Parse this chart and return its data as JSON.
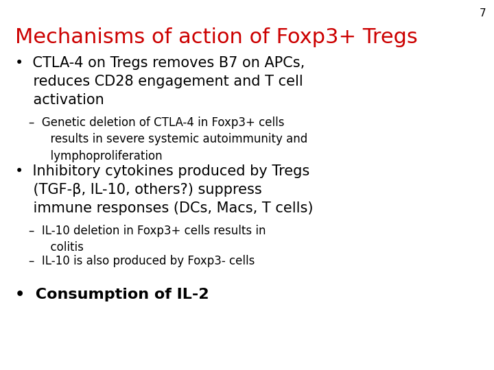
{
  "background_color": "#ffffff",
  "slide_number": "7",
  "slide_number_color": "#000000",
  "slide_number_fontsize": 11,
  "title": "Mechanisms of action of Foxp3+ Tregs",
  "title_color": "#cc0000",
  "title_fontsize": 22,
  "bullet_color": "#000000",
  "bullet1_text": "•  CTLA-4 on Tregs removes B7 on APCs,\n    reduces CD28 engagement and T cell\n    activation",
  "bullet1_fontsize": 15,
  "sub1_text": "–  Genetic deletion of CTLA-4 in Foxp3+ cells\n      results in severe systemic autoimmunity and\n      lymphoproliferation",
  "sub1_fontsize": 12,
  "bullet2_text": "•  Inhibitory cytokines produced by Tregs\n    (TGF-β, IL-10, others?) suppress\n    immune responses (DCs, Macs, T cells)",
  "bullet2_fontsize": 15,
  "sub2a_text": "–  IL-10 deletion in Foxp3+ cells results in\n      colitis",
  "sub2a_fontsize": 12,
  "sub2b_text": "–  IL-10 is also produced by Foxp3- cells",
  "sub2b_fontsize": 12,
  "bullet3_text": "•  Consumption of IL-2",
  "bullet3_fontsize": 16
}
